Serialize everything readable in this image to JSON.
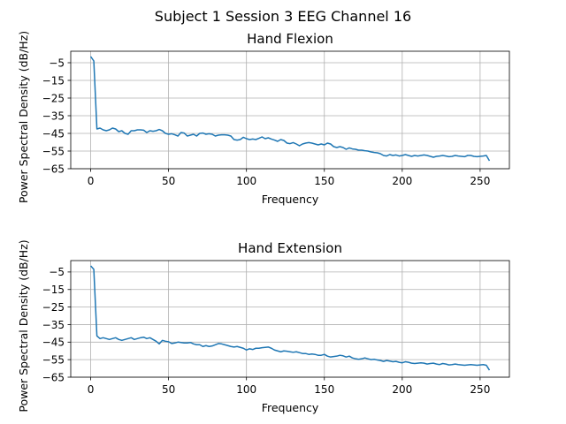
{
  "figure": {
    "suptitle": "Subject 1 Session 3 EEG Channel 16"
  },
  "colors": {
    "line": "#1f77b4",
    "grid": "#b0b0b0",
    "axes": "#000000",
    "background": "#ffffff"
  },
  "chart_data": [
    {
      "type": "line",
      "title": "Hand Flexion",
      "xlabel": "Frequency",
      "ylabel": "Power Spectral Density (dB/Hz)",
      "xlim": [
        -12.8,
        268.8
      ],
      "ylim": [
        -65,
        1.5
      ],
      "xticks": [
        0,
        50,
        100,
        150,
        200,
        250
      ],
      "yticks": [
        -5,
        -15,
        -25,
        -35,
        -45,
        -55,
        -65
      ],
      "grid": true,
      "series": [
        {
          "x": [
            0,
            2,
            4,
            6,
            8,
            10,
            12,
            14,
            16,
            18,
            20,
            22,
            24,
            26,
            28,
            30,
            32,
            34,
            36,
            38,
            40,
            42,
            44,
            46,
            48,
            50,
            52,
            54,
            56,
            58,
            60,
            62,
            64,
            66,
            68,
            70,
            72,
            74,
            76,
            78,
            80,
            82,
            84,
            86,
            88,
            90,
            92,
            94,
            96,
            98,
            100,
            102,
            104,
            106,
            108,
            110,
            112,
            114,
            116,
            118,
            120,
            122,
            124,
            126,
            128,
            130,
            132,
            134,
            136,
            138,
            140,
            142,
            144,
            146,
            148,
            150,
            152,
            154,
            156,
            158,
            160,
            162,
            164,
            166,
            168,
            170,
            172,
            174,
            176,
            178,
            180,
            182,
            184,
            186,
            188,
            190,
            192,
            194,
            196,
            198,
            200,
            202,
            204,
            206,
            208,
            210,
            212,
            214,
            216,
            218,
            220,
            222,
            224,
            226,
            228,
            230,
            232,
            234,
            236,
            238,
            240,
            242,
            244,
            246,
            248,
            250,
            252,
            254,
            256
          ],
          "y": [
            -1.5,
            -4,
            -42.5,
            -42,
            -43,
            -43.5,
            -43,
            -42,
            -42.5,
            -44,
            -43.5,
            -45,
            -45.5,
            -43.5,
            -43.5,
            -43,
            -43,
            -43.2,
            -44.5,
            -43.5,
            -43.8,
            -43.5,
            -42.8,
            -43.5,
            -45,
            -45.5,
            -45.2,
            -45.8,
            -46.5,
            -44.5,
            -44.8,
            -46.5,
            -46,
            -45.5,
            -46.5,
            -45,
            -44.8,
            -45.5,
            -45.2,
            -45.5,
            -46.5,
            -46,
            -45.8,
            -45.8,
            -46,
            -46.5,
            -48.5,
            -48.8,
            -48.5,
            -47.2,
            -48,
            -48.5,
            -48.2,
            -48.5,
            -47.8,
            -47,
            -48,
            -47.5,
            -48.2,
            -48.8,
            -49.5,
            -48.5,
            -49,
            -50.5,
            -50.8,
            -50.2,
            -51,
            -52,
            -51,
            -50.5,
            -50.2,
            -50.5,
            -51,
            -51.5,
            -51,
            -51.5,
            -50.5,
            -51,
            -52.5,
            -53,
            -52.5,
            -53,
            -54,
            -53.2,
            -53.8,
            -54,
            -54.5,
            -54.5,
            -54.8,
            -55,
            -55.5,
            -55.8,
            -56,
            -56.5,
            -57.5,
            -57.8,
            -57,
            -57.5,
            -57.2,
            -57.8,
            -57.5,
            -57,
            -57.5,
            -58,
            -57.5,
            -57.8,
            -57.5,
            -57.2,
            -57.5,
            -58,
            -58.5,
            -58,
            -57.8,
            -57.5,
            -57.8,
            -58.2,
            -58,
            -57.5,
            -57.8,
            -58,
            -58.2,
            -57.5,
            -57.5,
            -58,
            -58.2,
            -58,
            -57.8,
            -57.5,
            -60.5
          ]
        }
      ]
    },
    {
      "type": "line",
      "title": "Hand Extension",
      "xlabel": "Frequency",
      "ylabel": "Power Spectral Density (dB/Hz)",
      "xlim": [
        -12.8,
        268.8
      ],
      "ylim": [
        -65,
        1.5
      ],
      "xticks": [
        0,
        50,
        100,
        150,
        200,
        250
      ],
      "yticks": [
        -5,
        -15,
        -25,
        -35,
        -45,
        -55,
        -65
      ],
      "grid": true,
      "series": [
        {
          "x": [
            0,
            2,
            4,
            6,
            8,
            10,
            12,
            14,
            16,
            18,
            20,
            22,
            24,
            26,
            28,
            30,
            32,
            34,
            36,
            38,
            40,
            42,
            44,
            46,
            48,
            50,
            52,
            54,
            56,
            58,
            60,
            62,
            64,
            66,
            68,
            70,
            72,
            74,
            76,
            78,
            80,
            82,
            84,
            86,
            88,
            90,
            92,
            94,
            96,
            98,
            100,
            102,
            104,
            106,
            108,
            110,
            112,
            114,
            116,
            118,
            120,
            122,
            124,
            126,
            128,
            130,
            132,
            134,
            136,
            138,
            140,
            142,
            144,
            146,
            148,
            150,
            152,
            154,
            156,
            158,
            160,
            162,
            164,
            166,
            168,
            170,
            172,
            174,
            176,
            178,
            180,
            182,
            184,
            186,
            188,
            190,
            192,
            194,
            196,
            198,
            200,
            202,
            204,
            206,
            208,
            210,
            212,
            214,
            216,
            218,
            220,
            222,
            224,
            226,
            228,
            230,
            232,
            234,
            236,
            238,
            240,
            242,
            244,
            246,
            248,
            250,
            252,
            254,
            256
          ],
          "y": [
            -1.5,
            -3.5,
            -41.5,
            -43,
            -42.5,
            -43,
            -43.5,
            -43,
            -42.5,
            -43.5,
            -44,
            -43.5,
            -43,
            -42.5,
            -43.5,
            -43,
            -42.5,
            -42.2,
            -43,
            -42.5,
            -43.5,
            -44.5,
            -46,
            -44,
            -44.5,
            -44.8,
            -45.8,
            -45.5,
            -45,
            -45.2,
            -45.5,
            -45.5,
            -45.2,
            -46,
            -46.5,
            -46.5,
            -47.5,
            -47,
            -47.5,
            -47.2,
            -46.5,
            -45.8,
            -46,
            -46.5,
            -47,
            -47.5,
            -47.8,
            -47.5,
            -48,
            -48.5,
            -49.5,
            -48.8,
            -49.2,
            -48.5,
            -48.5,
            -48.2,
            -48,
            -47.8,
            -48.5,
            -49.5,
            -50,
            -50.5,
            -50,
            -50.2,
            -50.5,
            -50.8,
            -50.5,
            -51,
            -51.5,
            -51.5,
            -52,
            -51.8,
            -52,
            -52.5,
            -52.5,
            -52,
            -53,
            -53.5,
            -53.2,
            -53,
            -52.5,
            -52.8,
            -53.5,
            -53,
            -54,
            -54.5,
            -54.8,
            -54.5,
            -54,
            -54.5,
            -55,
            -54.8,
            -55.2,
            -55.5,
            -56,
            -55.5,
            -55.8,
            -56.2,
            -56,
            -56.5,
            -56.8,
            -56.2,
            -56.5,
            -57,
            -57.2,
            -57,
            -56.8,
            -57,
            -57.5,
            -57.2,
            -57,
            -57.5,
            -57.8,
            -57.2,
            -57.5,
            -58,
            -57.8,
            -57.5,
            -57.8,
            -58,
            -58.2,
            -58,
            -57.8,
            -58,
            -58.2,
            -58,
            -57.8,
            -58.2,
            -61
          ]
        }
      ]
    }
  ]
}
